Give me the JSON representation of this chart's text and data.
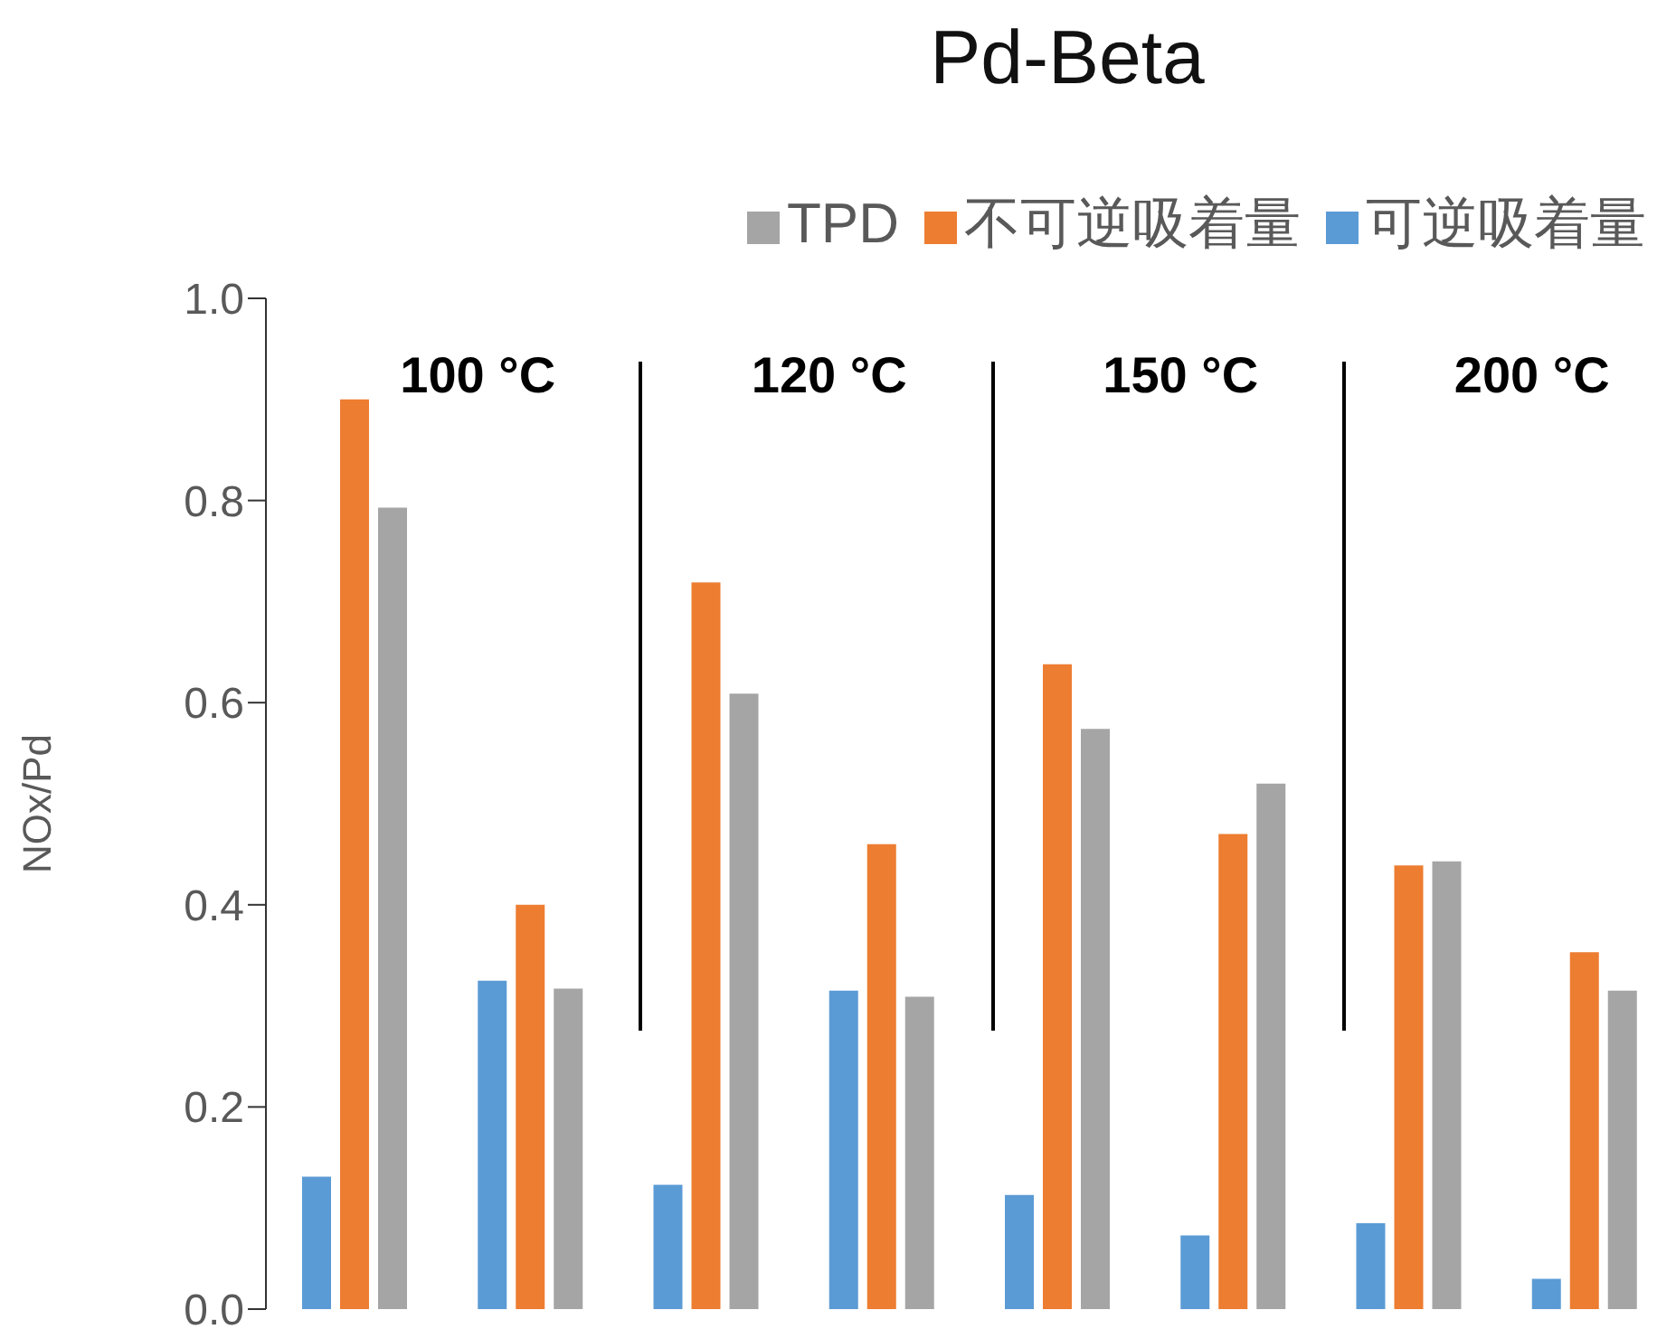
{
  "chart_data": {
    "type": "bar",
    "title": "Pd-Beta",
    "ylabel": "NOx/Pd",
    "categories": [
      null,
      null,
      null,
      null,
      null,
      null,
      null,
      null
    ],
    "series": [
      {
        "name": "可逆吸着量",
        "color": "#5b9bd5",
        "values": [
          0.131,
          0.325,
          0.123,
          0.315,
          0.113,
          0.073,
          0.085,
          0.03
        ]
      },
      {
        "name": "不可逆吸着量",
        "color": "#ed7d31",
        "values": [
          0.9,
          0.4,
          0.719,
          0.46,
          0.638,
          0.47,
          0.439,
          0.353
        ]
      },
      {
        "name": "TPD",
        "color": "#a5a5a5",
        "values": [
          0.793,
          0.317,
          0.609,
          0.309,
          0.574,
          0.52,
          0.443,
          0.315
        ]
      }
    ],
    "ylim": [
      0,
      1
    ],
    "yticks": [
      {
        "value": 0,
        "label": "0.0"
      },
      0.2,
      0.4,
      0.6,
      0.8,
      {
        "value": 1,
        "label": "1.0"
      }
    ],
    "annotations": [
      "100 °C",
      "120 °C",
      "150 °C",
      "200 °C"
    ],
    "tick_labels": "y",
    "grid": false,
    "legend": "top right"
  }
}
